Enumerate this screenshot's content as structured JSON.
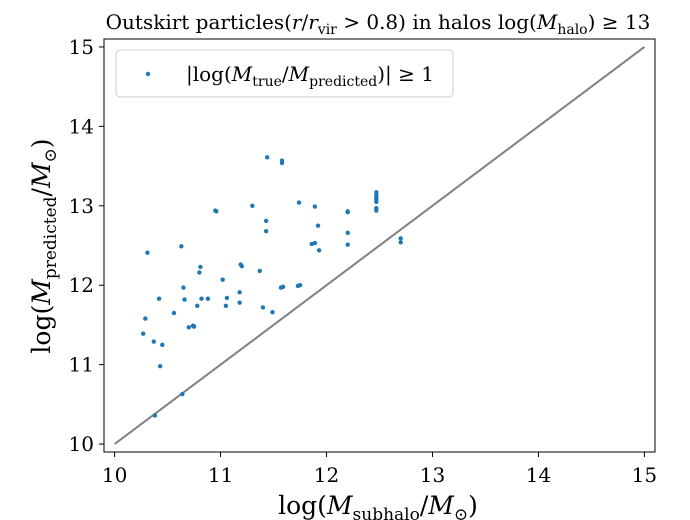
{
  "chart_data": {
    "type": "scatter",
    "title": "Outskirt particles(r/r_vir > 0.8) in halos log(M_halo) ≥ 13",
    "title_parts": {
      "prefix": "Outskirt particles(",
      "r": "r",
      "slash": "/",
      "r2": "r",
      "vir_sub": "vir",
      "gt": " > 0.8) in halos log(",
      "M": "M",
      "halo_sub": "halo",
      "suffix": ") ≥ 13"
    },
    "xlabel": "log(M_subhalo/M_⊙)",
    "xlabel_parts": {
      "pre": "log(",
      "M": "M",
      "sub": "subhalo",
      "mid": "/",
      "M2": "M",
      "sun": "⊙",
      "post": ")"
    },
    "ylabel": "log(M_predicted/M_⊙)",
    "ylabel_parts": {
      "pre": "log(",
      "M": "M",
      "sub": "predicted",
      "mid": "/",
      "M2": "M",
      "sun": "⊙",
      "post": ")"
    },
    "xlim": [
      9.9,
      15.1
    ],
    "ylim": [
      9.9,
      15.1
    ],
    "xticks": [
      "10",
      "11",
      "12",
      "13",
      "14",
      "15"
    ],
    "yticks": [
      "10",
      "11",
      "12",
      "13",
      "14",
      "15"
    ],
    "grid": false,
    "legend_position": "top-left",
    "colors": {
      "points": "#1f77b4",
      "line": "#808080"
    },
    "series": [
      {
        "name": "|log(M_true/M_predicted)| ≥ 1",
        "legend_parts": {
          "pre": "|log(",
          "M": "M",
          "sub1": "true",
          "mid": "/",
          "M2": "M",
          "sub2": "predicted",
          "post": ")| ≥ 1"
        },
        "x": [
          10.27,
          10.29,
          10.31,
          10.37,
          10.38,
          10.42,
          10.43,
          10.45,
          10.56,
          10.63,
          10.64,
          10.65,
          10.66,
          10.7,
          10.74,
          10.75,
          10.78,
          10.8,
          10.81,
          10.82,
          10.88,
          10.95,
          10.96,
          11.02,
          11.05,
          11.06,
          11.18,
          11.18,
          11.19,
          11.2,
          11.3,
          11.37,
          11.4,
          11.43,
          11.43,
          11.44,
          11.49,
          11.57,
          11.58,
          11.58,
          11.59,
          11.73,
          11.74,
          11.75,
          11.86,
          11.89,
          11.89,
          11.92,
          11.93,
          12.2,
          12.2,
          12.2,
          12.2,
          12.47,
          12.47,
          12.47,
          12.47,
          12.47,
          12.47,
          12.47,
          12.7,
          12.7
        ],
        "y": [
          11.39,
          11.58,
          12.41,
          11.29,
          10.36,
          11.83,
          10.98,
          11.25,
          11.65,
          12.49,
          10.63,
          11.97,
          11.82,
          11.47,
          11.49,
          11.48,
          11.74,
          12.16,
          12.23,
          11.83,
          11.83,
          12.94,
          12.93,
          12.07,
          11.74,
          11.84,
          11.78,
          11.91,
          12.26,
          12.24,
          13.0,
          12.18,
          11.72,
          12.68,
          12.81,
          13.61,
          11.66,
          11.97,
          13.54,
          13.57,
          11.98,
          11.99,
          13.04,
          12.0,
          12.52,
          12.53,
          12.99,
          12.75,
          12.44,
          12.66,
          12.51,
          12.93,
          12.92,
          12.94,
          12.97,
          13.05,
          13.08,
          13.13,
          13.1,
          13.17,
          12.54,
          12.59
        ]
      }
    ],
    "reference_line": {
      "x": [
        10,
        15
      ],
      "y": [
        10,
        15
      ]
    }
  }
}
